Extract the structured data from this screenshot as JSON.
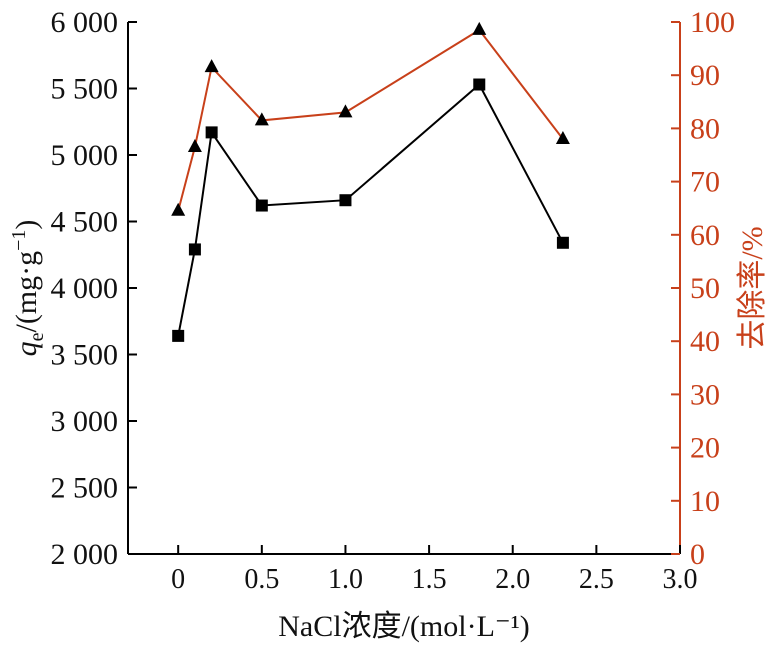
{
  "chart_data": {
    "type": "line",
    "xlabel": "NaCl浓度/(mol·L⁻¹)",
    "ylabel_left": {
      "symbol": "q",
      "subscript": "e",
      "rest": "/(mg·g",
      "superscript": "−1",
      "close": ")"
    },
    "ylabel_right": "去除率/%",
    "xlim": [
      -0.3,
      3.0
    ],
    "ylim_left": [
      2000,
      6000
    ],
    "ylim_right": [
      0,
      100
    ],
    "x_ticks": [
      {
        "value": 0,
        "label": "0"
      },
      {
        "value": 0.5,
        "label": "0.5"
      },
      {
        "value": 1.0,
        "label": "1.0"
      },
      {
        "value": 1.5,
        "label": "1.5"
      },
      {
        "value": 2.0,
        "label": "2.0"
      },
      {
        "value": 2.5,
        "label": "2.5"
      },
      {
        "value": 3.0,
        "label": "3.0"
      }
    ],
    "y_left_ticks": [
      {
        "value": 2000,
        "label": "2 000"
      },
      {
        "value": 2500,
        "label": "2 500"
      },
      {
        "value": 3000,
        "label": "3 000"
      },
      {
        "value": 3500,
        "label": "3 500"
      },
      {
        "value": 4000,
        "label": "4 000"
      },
      {
        "value": 4500,
        "label": "4 500"
      },
      {
        "value": 5000,
        "label": "5 000"
      },
      {
        "value": 5500,
        "label": "5 500"
      },
      {
        "value": 6000,
        "label": "6 000"
      }
    ],
    "y_right_ticks": [
      {
        "value": 0,
        "label": "0"
      },
      {
        "value": 10,
        "label": "10"
      },
      {
        "value": 20,
        "label": "20"
      },
      {
        "value": 30,
        "label": "30"
      },
      {
        "value": 40,
        "label": "40"
      },
      {
        "value": 50,
        "label": "50"
      },
      {
        "value": 60,
        "label": "60"
      },
      {
        "value": 70,
        "label": "70"
      },
      {
        "value": 80,
        "label": "80"
      },
      {
        "value": 90,
        "label": "90"
      },
      {
        "value": 100,
        "label": "100"
      }
    ],
    "series": [
      {
        "axis": "left",
        "marker": "square",
        "color": "#000000",
        "x": [
          0,
          0.1,
          0.2,
          0.5,
          1.0,
          1.8,
          2.3
        ],
        "y": [
          3640,
          4290,
          5170,
          4620,
          4660,
          5530,
          4340
        ]
      },
      {
        "axis": "right",
        "marker": "triangle",
        "color": "#c8401a",
        "marker_color": "#000000",
        "x": [
          0,
          0.1,
          0.2,
          0.5,
          1.0,
          1.8,
          2.3
        ],
        "y": [
          64.5,
          76.5,
          91.5,
          81.5,
          83.0,
          98.5,
          78.0
        ]
      }
    ],
    "grid": false,
    "colors": {
      "axis_left": "#000000",
      "axis_right": "#c8401a"
    }
  }
}
